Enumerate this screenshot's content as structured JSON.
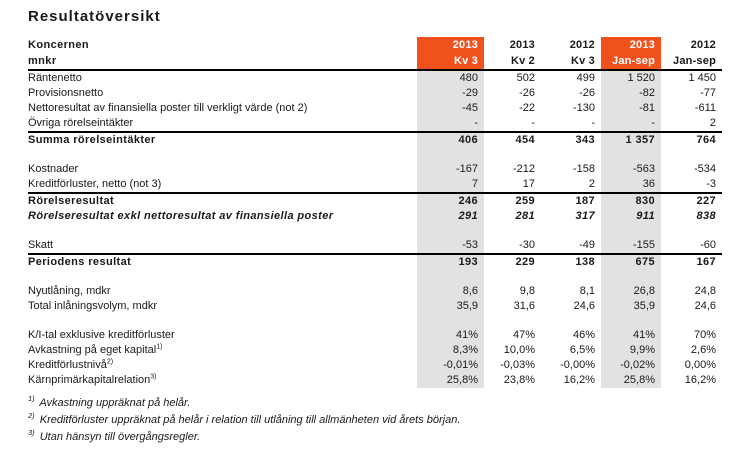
{
  "title": "Resultatöversikt",
  "colors": {
    "accent_orange": "#F1511C",
    "band_gray": "#E2E2E2",
    "text": "#1A1A1A"
  },
  "table": {
    "corner": {
      "line1": "Koncernen",
      "line2": "mnkr"
    },
    "columns": [
      {
        "year": "2013",
        "period": "Kv 3",
        "highlighted": true
      },
      {
        "year": "2013",
        "period": "Kv 2",
        "highlighted": false
      },
      {
        "year": "2012",
        "period": "Kv 3",
        "highlighted": false
      },
      {
        "year": "2013",
        "period": "Jan-sep",
        "highlighted": true
      },
      {
        "year": "2012",
        "period": "Jan-sep",
        "highlighted": false
      }
    ],
    "rows": [
      {
        "label": "Räntenetto",
        "values": [
          "480",
          "502",
          "499",
          "1 520",
          "1 450"
        ]
      },
      {
        "label": "Provisionsnetto",
        "values": [
          "-29",
          "-26",
          "-26",
          "-82",
          "-77"
        ]
      },
      {
        "label": "Nettoresultat av finansiella poster till verkligt värde (not 2)",
        "values": [
          "-45",
          "-22",
          "-130",
          "-81",
          "-611"
        ]
      },
      {
        "label": "Övriga rörelseintäkter",
        "values": [
          "-",
          "-",
          "-",
          "-",
          "2"
        ],
        "rule_below": true
      },
      {
        "label": "Summa rörelseintäkter",
        "values": [
          "406",
          "454",
          "343",
          "1 357",
          "764"
        ],
        "bold": true
      },
      {
        "spacer": true
      },
      {
        "label": "Kostnader",
        "values": [
          "-167",
          "-212",
          "-158",
          "-563",
          "-534"
        ]
      },
      {
        "label": "Kreditförluster, netto (not 3)",
        "values": [
          "7",
          "17",
          "2",
          "36",
          "-3"
        ],
        "rule_below": true
      },
      {
        "label": "Rörelseresultat",
        "values": [
          "246",
          "259",
          "187",
          "830",
          "227"
        ],
        "bold": true
      },
      {
        "label": "Rörelseresultat exkl nettoresultat av finansiella poster",
        "values": [
          "291",
          "281",
          "317",
          "911",
          "838"
        ],
        "bold": true,
        "italic": true
      },
      {
        "spacer": true
      },
      {
        "label": "Skatt",
        "values": [
          "-53",
          "-30",
          "-49",
          "-155",
          "-60"
        ],
        "rule_below": true
      },
      {
        "label": "Periodens resultat",
        "values": [
          "193",
          "229",
          "138",
          "675",
          "167"
        ],
        "bold": true
      },
      {
        "spacer": true
      },
      {
        "label": "Nyutlåning, mdkr",
        "values": [
          "8,6",
          "9,8",
          "8,1",
          "26,8",
          "24,8"
        ]
      },
      {
        "label": "Total inlåningsvolym, mdkr",
        "values": [
          "35,9",
          "31,6",
          "24,6",
          "35,9",
          "24,6"
        ]
      },
      {
        "spacer": true
      },
      {
        "label": "K/I-tal exklusive kreditförluster",
        "values": [
          "41%",
          "47%",
          "46%",
          "41%",
          "70%"
        ]
      },
      {
        "label": "Avkastning på eget kapital",
        "sup": "1)",
        "values": [
          "8,3%",
          "10,0%",
          "6,5%",
          "9,9%",
          "2,6%"
        ]
      },
      {
        "label": "Kreditförlustnivå",
        "sup": "2)",
        "values": [
          "-0,01%",
          "-0,03%",
          "-0,00%",
          "-0,02%",
          "0,00%"
        ]
      },
      {
        "label": "Kärnprimärkapitalrelation",
        "sup": "3)",
        "values": [
          "25,8%",
          "23,8%",
          "16,2%",
          "25,8%",
          "16,2%"
        ]
      }
    ]
  },
  "footnotes": [
    {
      "marker": "1)",
      "text": "Avkastning uppräknat på helår."
    },
    {
      "marker": "2)",
      "text": "Kreditförluster uppräknat på helår i relation till utlåning till allmänheten vid årets början."
    },
    {
      "marker": "3)",
      "text": "Utan hänsyn till övergångsregler."
    }
  ]
}
